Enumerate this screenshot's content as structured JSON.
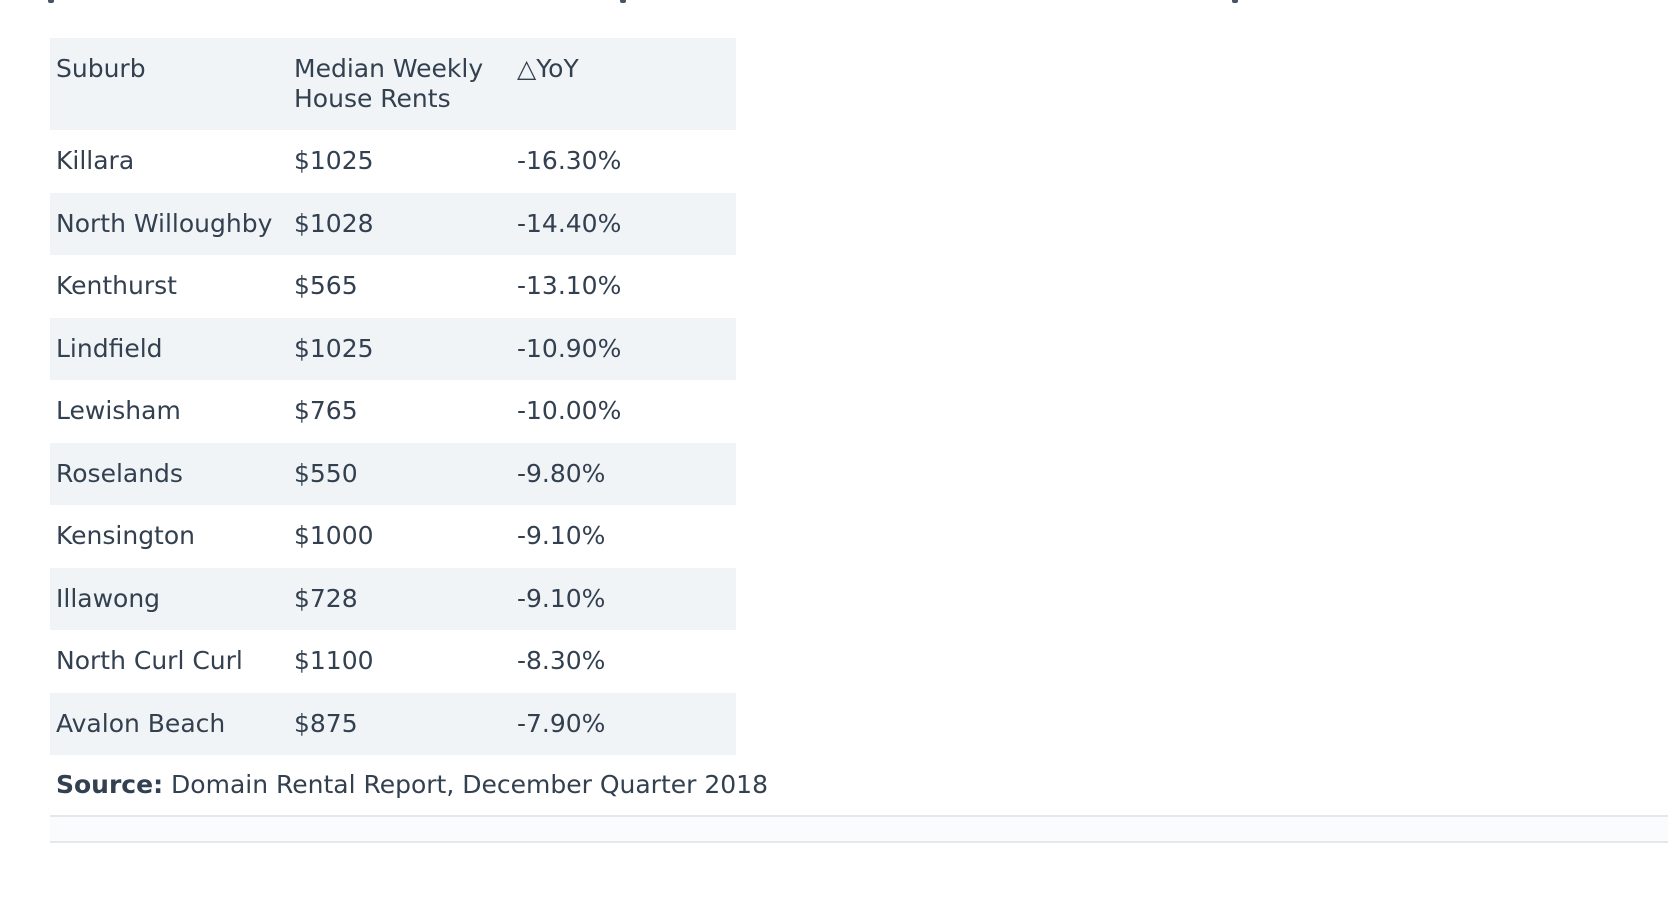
{
  "table": {
    "headers": [
      "Suburb",
      "Median Weekly House Rents",
      "△YoY"
    ],
    "rows": [
      [
        "Killara",
        "$1025",
        "-16.30%"
      ],
      [
        "North Willoughby",
        "$1028",
        "-14.40%"
      ],
      [
        "Kenthurst",
        "$565",
        "-13.10%"
      ],
      [
        "Lindfield",
        "$1025",
        "-10.90%"
      ],
      [
        "Lewisham",
        "$765",
        "-10.00%"
      ],
      [
        "Roselands",
        "$550",
        "-9.80%"
      ],
      [
        "Kensington",
        "$1000",
        "-9.10%"
      ],
      [
        "Illawong",
        "$728",
        "-9.10%"
      ],
      [
        "North Curl Curl",
        "$1100",
        "-8.30%"
      ],
      [
        "Avalon Beach",
        "$875",
        "-7.90%"
      ]
    ]
  },
  "source": {
    "label": "Source:",
    "text": "Domain Rental Report, December Quarter 2018"
  },
  "colors": {
    "text": "#33404f",
    "stripe": "#f1f4f7",
    "divider": "#e4e7eb"
  }
}
